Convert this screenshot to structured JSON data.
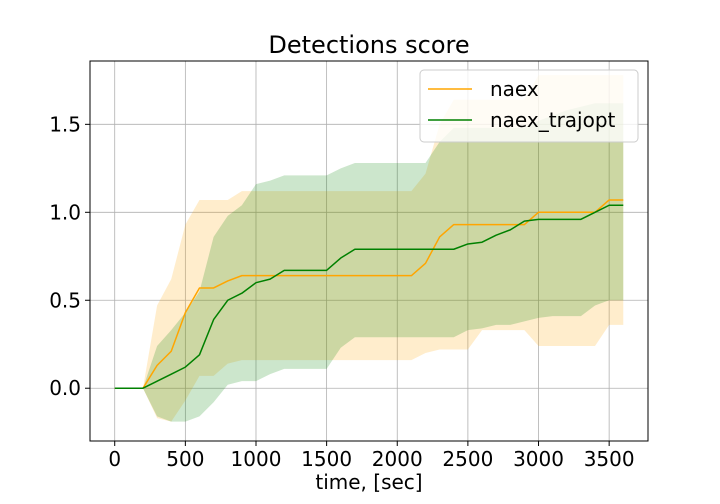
{
  "chart_data": {
    "type": "line",
    "title": "Detections score",
    "xlabel": "time, [sec]",
    "ylabel": "",
    "xlim": [
      -175,
      3775
    ],
    "ylim": [
      -0.3,
      1.86
    ],
    "grid": true,
    "legend_position": "upper-right",
    "xticks": [
      0,
      500,
      1000,
      1500,
      2000,
      2500,
      3000,
      3500
    ],
    "xtick_labels": [
      "0",
      "500",
      "1000",
      "1500",
      "2000",
      "2500",
      "3000",
      "3500"
    ],
    "yticks": [
      0.0,
      0.5,
      1.0,
      1.5
    ],
    "ytick_labels": [
      "0.0",
      "0.5",
      "1.0",
      "1.5"
    ],
    "x": [
      0,
      100,
      200,
      300,
      400,
      500,
      600,
      700,
      800,
      900,
      1000,
      1100,
      1200,
      1300,
      1400,
      1500,
      1600,
      1700,
      1800,
      1900,
      2000,
      2100,
      2200,
      2300,
      2400,
      2500,
      2600,
      2700,
      2800,
      2900,
      3000,
      3100,
      3200,
      3300,
      3400,
      3500,
      3600
    ],
    "series": [
      {
        "name": "naex",
        "color": "#ffa500",
        "band_opacity": 0.2,
        "values": [
          0,
          0,
          0,
          0.13,
          0.21,
          0.43,
          0.57,
          0.57,
          0.61,
          0.64,
          0.64,
          0.64,
          0.64,
          0.64,
          0.64,
          0.64,
          0.64,
          0.64,
          0.64,
          0.64,
          0.64,
          0.64,
          0.71,
          0.86,
          0.93,
          0.93,
          0.93,
          0.93,
          0.93,
          0.93,
          1.0,
          1.0,
          1.0,
          1.0,
          1.0,
          1.07,
          1.07
        ],
        "upper": [
          0,
          0,
          0,
          0.47,
          0.62,
          0.93,
          1.07,
          1.07,
          1.07,
          1.12,
          1.12,
          1.12,
          1.12,
          1.12,
          1.12,
          1.12,
          1.12,
          1.12,
          1.12,
          1.12,
          1.12,
          1.12,
          1.22,
          1.5,
          1.64,
          1.64,
          1.64,
          1.64,
          1.64,
          1.64,
          1.78,
          1.78,
          1.78,
          1.78,
          1.78,
          1.78,
          1.78
        ],
        "lower": [
          0,
          0,
          0,
          -0.17,
          -0.19,
          -0.07,
          0.07,
          0.07,
          0.14,
          0.16,
          0.16,
          0.16,
          0.16,
          0.16,
          0.16,
          0.16,
          0.16,
          0.16,
          0.16,
          0.16,
          0.16,
          0.16,
          0.2,
          0.22,
          0.22,
          0.22,
          0.33,
          0.33,
          0.33,
          0.33,
          0.24,
          0.24,
          0.24,
          0.24,
          0.24,
          0.36,
          0.36
        ]
      },
      {
        "name": "naex_trajopt",
        "color": "#008000",
        "band_opacity": 0.2,
        "values": [
          0,
          0,
          0,
          0.04,
          0.08,
          0.12,
          0.19,
          0.39,
          0.5,
          0.54,
          0.6,
          0.62,
          0.67,
          0.67,
          0.67,
          0.67,
          0.74,
          0.79,
          0.79,
          0.79,
          0.79,
          0.79,
          0.79,
          0.79,
          0.79,
          0.82,
          0.83,
          0.87,
          0.9,
          0.95,
          0.96,
          0.96,
          0.96,
          0.96,
          1.0,
          1.04,
          1.04
        ],
        "upper": [
          0,
          0,
          0,
          0.24,
          0.33,
          0.43,
          0.55,
          0.86,
          0.98,
          1.04,
          1.16,
          1.18,
          1.21,
          1.21,
          1.21,
          1.21,
          1.25,
          1.28,
          1.28,
          1.28,
          1.28,
          1.28,
          1.28,
          1.4,
          1.48,
          1.48,
          1.48,
          1.48,
          1.48,
          1.48,
          1.52,
          1.55,
          1.58,
          1.6,
          1.62,
          1.62,
          1.62
        ],
        "lower": [
          0,
          0,
          0,
          -0.16,
          -0.19,
          -0.19,
          -0.16,
          -0.08,
          0.02,
          0.04,
          0.04,
          0.08,
          0.11,
          0.11,
          0.11,
          0.11,
          0.23,
          0.29,
          0.29,
          0.29,
          0.29,
          0.29,
          0.29,
          0.29,
          0.29,
          0.33,
          0.34,
          0.36,
          0.36,
          0.38,
          0.4,
          0.41,
          0.41,
          0.41,
          0.47,
          0.5,
          0.5
        ]
      }
    ]
  }
}
